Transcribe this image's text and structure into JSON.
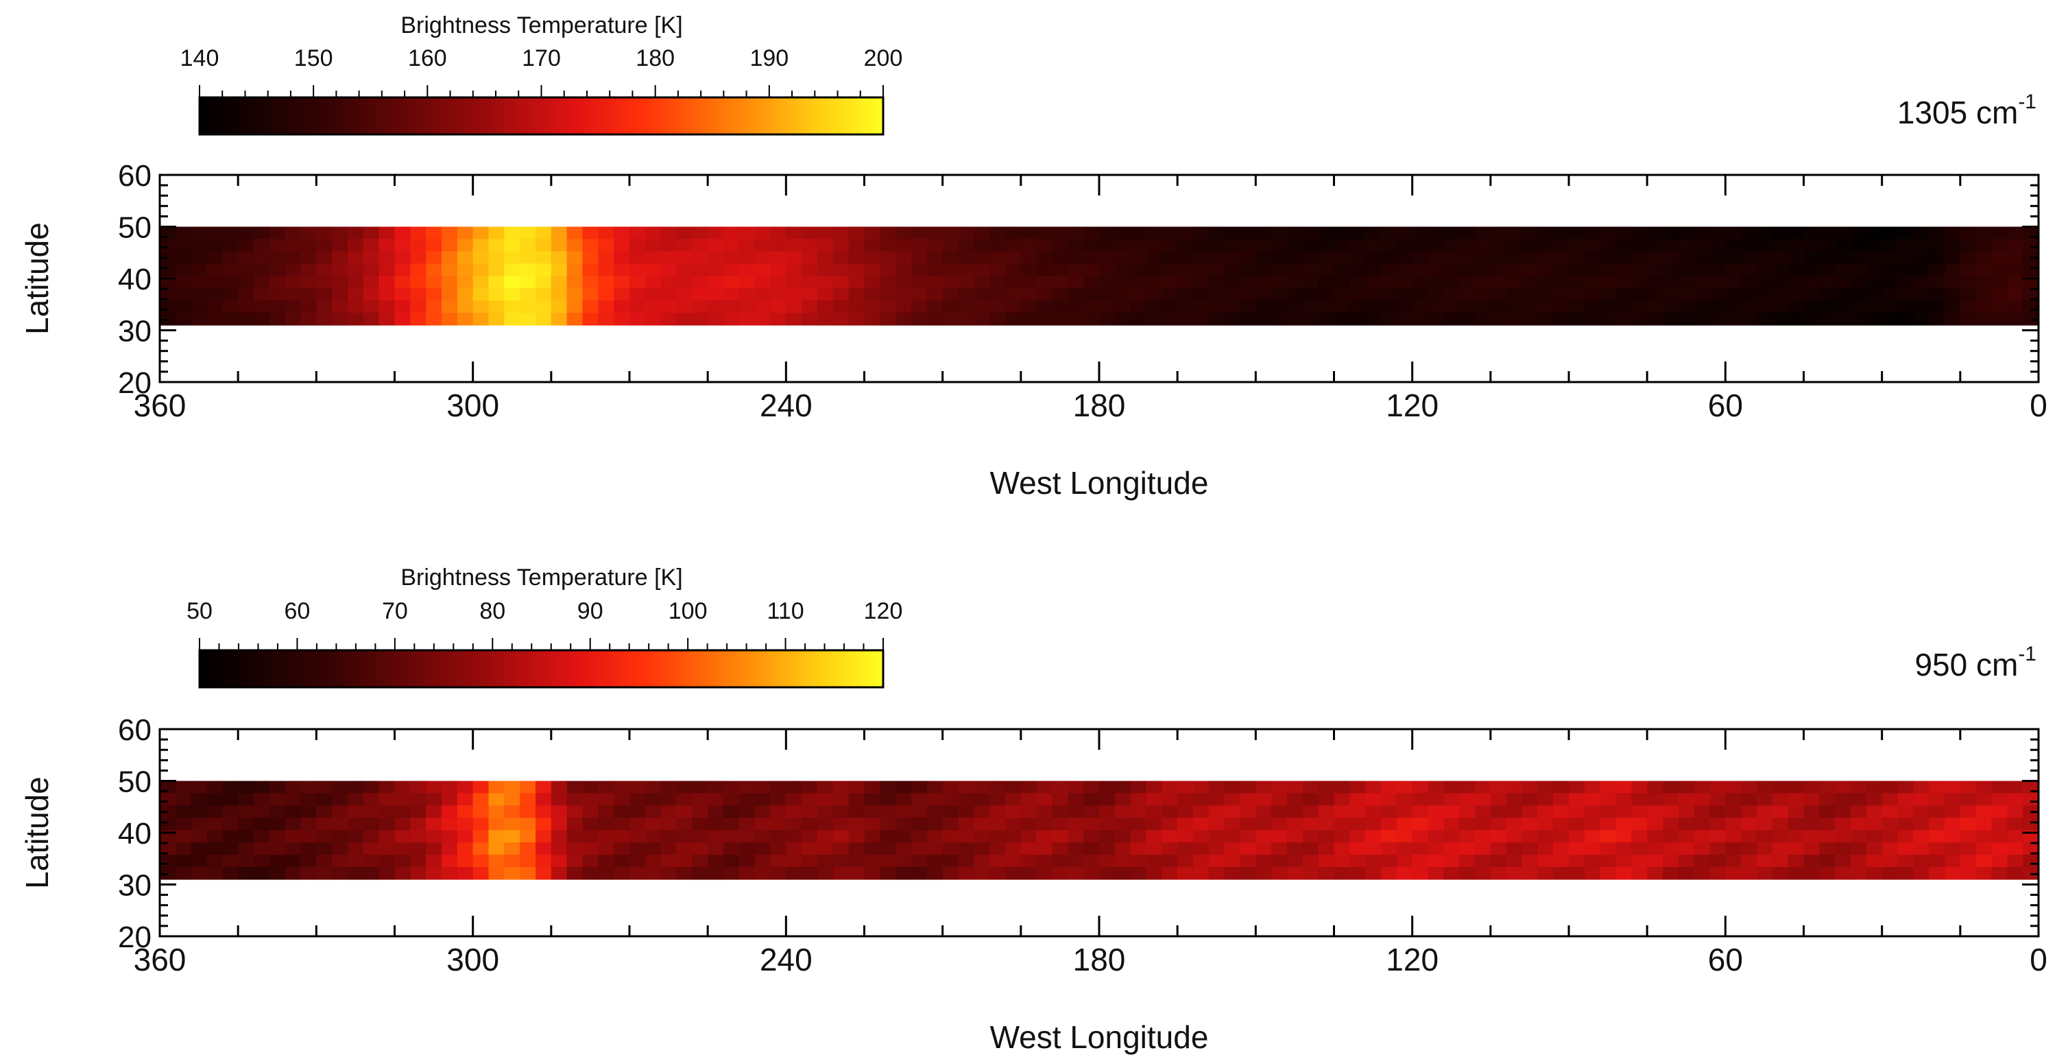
{
  "chart_data": [
    {
      "type": "heatmap",
      "wavenumber_label": "1305 cm",
      "wavenumber_superscript": "-1",
      "colorbar": {
        "title": "Brightness Temperature [K]",
        "range": [
          140,
          200
        ],
        "tick_labels": [
          "140",
          "150",
          "160",
          "170",
          "180",
          "190",
          "200"
        ]
      },
      "xlabel": "West Longitude",
      "ylabel": "Latitude",
      "xlim": [
        360,
        0
      ],
      "ylim": [
        20,
        60
      ],
      "x_tick_labels": [
        "360",
        "300",
        "240",
        "180",
        "120",
        "60",
        "0"
      ],
      "y_tick_labels": [
        "60",
        "50",
        "40",
        "30",
        "20"
      ],
      "data_lat_range": [
        31,
        50
      ],
      "profile": {
        "longitudes": [
          360,
          345,
          330,
          320,
          310,
          300,
          292,
          285,
          278,
          270,
          260,
          250,
          240,
          230,
          220,
          210,
          195,
          180,
          165,
          150,
          135,
          120,
          105,
          90,
          75,
          60,
          45,
          30,
          20,
          12,
          5,
          0
        ],
        "temps": [
          148,
          152,
          158,
          166,
          177,
          190,
          197,
          194,
          180,
          172,
          170,
          171,
          170,
          166,
          160,
          156,
          153,
          150,
          148,
          146,
          145,
          146,
          147,
          146,
          145,
          144,
          143,
          142,
          143,
          149,
          151,
          148
        ]
      }
    },
    {
      "type": "heatmap",
      "wavenumber_label": "950 cm",
      "wavenumber_superscript": "-1",
      "colorbar": {
        "title": "Brightness Temperature [K]",
        "range": [
          50,
          120
        ],
        "tick_labels": [
          "50",
          "60",
          "70",
          "80",
          "90",
          "100",
          "110",
          "120"
        ]
      },
      "xlabel": "West Longitude",
      "ylabel": "Latitude",
      "xlim": [
        360,
        0
      ],
      "ylim": [
        20,
        60
      ],
      "x_tick_labels": [
        "360",
        "300",
        "240",
        "180",
        "120",
        "60",
        "0"
      ],
      "y_tick_labels": [
        "60",
        "50",
        "40",
        "30",
        "20"
      ],
      "data_lat_range": [
        31,
        50
      ],
      "profile": {
        "longitudes": [
          360,
          345,
          330,
          320,
          310,
          300,
          295,
          290,
          285,
          280,
          270,
          260,
          250,
          240,
          230,
          220,
          210,
          200,
          190,
          180,
          170,
          160,
          150,
          140,
          130,
          120,
          110,
          100,
          90,
          80,
          70,
          60,
          50,
          40,
          30,
          20,
          10,
          0
        ],
        "temps": [
          66,
          64,
          68,
          72,
          78,
          92,
          104,
          100,
          86,
          76,
          72,
          74,
          70,
          74,
          76,
          70,
          72,
          76,
          78,
          74,
          80,
          82,
          82,
          80,
          84,
          86,
          84,
          82,
          84,
          86,
          82,
          80,
          82,
          78,
          82,
          84,
          86,
          82
        ]
      }
    }
  ]
}
